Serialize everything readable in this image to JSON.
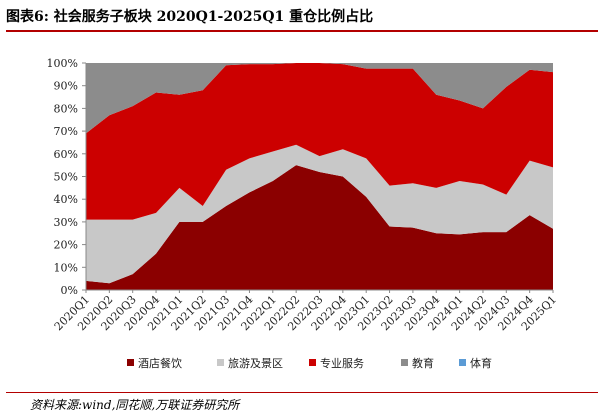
{
  "figure_title": "图表6:  社会服务子板块 2020Q1-2025Q1 重仓比例占比",
  "source_note": "资料来源:wind,同花顺,万联证券研究所",
  "chart_data": {
    "type": "area",
    "stacked": true,
    "title": "",
    "xlabel": "",
    "ylabel": "",
    "ylim": [
      0,
      100
    ],
    "y_ticks": [
      0,
      10,
      20,
      30,
      40,
      50,
      60,
      70,
      80,
      90,
      100
    ],
    "y_tick_suffix": "%",
    "grid": false,
    "legend_position": "bottom",
    "categories": [
      "2020Q1",
      "2020Q2",
      "2020Q3",
      "2020Q4",
      "2021Q1",
      "2021Q2",
      "2021Q3",
      "2021Q4",
      "2022Q1",
      "2022Q2",
      "2022Q3",
      "2022Q4",
      "2023Q1",
      "2023Q2",
      "2023Q3",
      "2023Q4",
      "2024Q1",
      "2024Q2",
      "2024Q3",
      "2024Q4",
      "2025Q1"
    ],
    "series": [
      {
        "name": "酒店餐饮",
        "color": "#8b0000",
        "values": [
          4,
          3,
          7,
          16,
          30,
          30,
          37,
          43,
          48,
          55,
          52,
          50,
          41,
          28,
          27.5,
          25,
          24.5,
          25.5,
          25.5,
          33,
          27
        ]
      },
      {
        "name": "旅游及景区",
        "color": "#c8c8c8",
        "values": [
          27,
          28,
          24,
          18,
          15,
          7,
          16,
          15,
          13,
          9,
          7,
          12,
          17,
          18,
          19.5,
          20,
          23.5,
          21,
          16.5,
          24,
          27
        ]
      },
      {
        "name": "专业服务",
        "color": "#cc0000",
        "values": [
          38,
          46,
          50,
          53,
          41,
          51,
          46,
          41.5,
          38.5,
          36,
          41,
          37.5,
          39.5,
          51.5,
          50.5,
          41,
          35.5,
          33.5,
          47.5,
          40,
          42
        ]
      },
      {
        "name": "教育",
        "color": "#8c8c8c",
        "values": [
          31,
          23,
          19,
          13,
          14,
          12,
          1,
          0.5,
          0.5,
          0,
          0,
          0.5,
          2.5,
          2.5,
          2.5,
          14,
          16.5,
          20,
          10.5,
          3,
          4
        ]
      },
      {
        "name": "体育",
        "color": "#5b9bd5",
        "values": [
          0,
          0,
          0,
          0,
          0,
          0,
          0,
          0,
          0,
          0,
          0,
          0,
          0,
          0,
          0,
          0,
          0,
          0,
          0,
          0,
          0
        ]
      }
    ]
  }
}
